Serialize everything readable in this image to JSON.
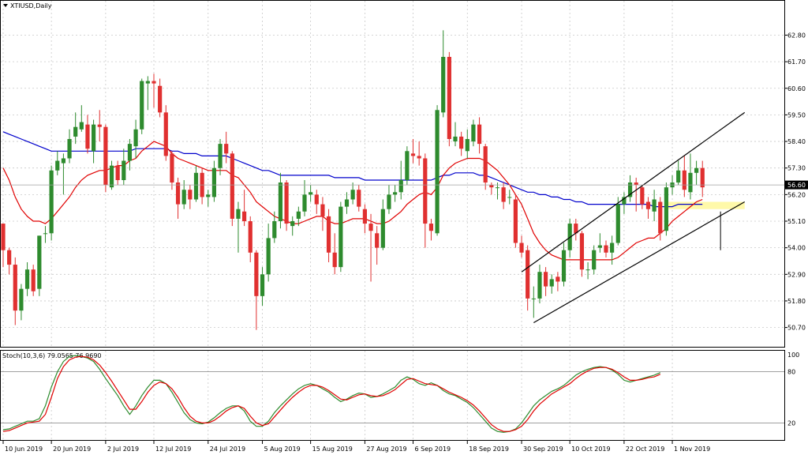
{
  "chart_data": {
    "type": "candlestick",
    "symbol_label": "XTIUSD,Daily",
    "price_axis": {
      "ylim": [
        50.0,
        63.6
      ],
      "ticks": [
        "62.80",
        "61.70",
        "60.60",
        "59.50",
        "58.40",
        "57.30",
        "56.20",
        "55.10",
        "54.00",
        "52.90",
        "51.80",
        "50.70"
      ]
    },
    "current_price_label": "56.60",
    "current_price": 56.6,
    "x_ticks": [
      {
        "bar": 0,
        "label": "10 Jun 2019"
      },
      {
        "bar": 8,
        "label": "20 Jun 2019"
      },
      {
        "bar": 17,
        "label": "2 Jul 2019"
      },
      {
        "bar": 25,
        "label": "12 Jul 2019"
      },
      {
        "bar": 34,
        "label": "24 Jul 2019"
      },
      {
        "bar": 43,
        "label": "5 Aug 2019"
      },
      {
        "bar": 51,
        "label": "15 Aug 2019"
      },
      {
        "bar": 60,
        "label": "27 Aug 2019"
      },
      {
        "bar": 68,
        "label": "6 Sep 2019"
      },
      {
        "bar": 77,
        "label": "18 Sep 2019"
      },
      {
        "bar": 86,
        "label": "30 Sep 2019"
      },
      {
        "bar": 94,
        "label": "10 Oct 2019"
      },
      {
        "bar": 103,
        "label": "22 Oct 2019"
      },
      {
        "bar": 111,
        "label": "1 Nov 2019"
      }
    ],
    "colors": {
      "bull": "#2e8b2e",
      "bear": "#e03030",
      "ma_fast": "#e00000",
      "ma_slow": "#0000cc",
      "stoch_main": "#2e8b2e",
      "stoch_signal": "#e00000",
      "highlight": "#fff8a0",
      "channel": "#000000"
    },
    "candles": [
      [
        55.0,
        53.9,
        55.0,
        53.2
      ],
      [
        53.9,
        53.3,
        54.0,
        52.9
      ],
      [
        53.3,
        51.4,
        53.6,
        50.8
      ],
      [
        51.4,
        52.3,
        52.5,
        51.0
      ],
      [
        52.3,
        53.1,
        53.4,
        52.0
      ],
      [
        53.1,
        52.2,
        53.3,
        52.0
      ],
      [
        52.3,
        54.5,
        54.5,
        52.0
      ],
      [
        54.6,
        54.6,
        54.9,
        54.2
      ],
      [
        54.6,
        57.2,
        57.4,
        54.3
      ],
      [
        57.2,
        57.6,
        58.0,
        57.0
      ],
      [
        57.5,
        57.7,
        57.9,
        56.2
      ],
      [
        57.7,
        58.5,
        58.9,
        57.5
      ],
      [
        58.6,
        59.0,
        59.6,
        58.3
      ],
      [
        58.9,
        59.2,
        59.9,
        58.8
      ],
      [
        59.1,
        58.1,
        59.5,
        57.9
      ],
      [
        58.0,
        59.1,
        59.3,
        57.5
      ],
      [
        59.1,
        59.0,
        59.7,
        58.4
      ],
      [
        59.0,
        56.6,
        59.1,
        56.3
      ],
      [
        56.5,
        57.4,
        57.6,
        56.4
      ],
      [
        57.4,
        56.8,
        57.6,
        56.6
      ],
      [
        56.8,
        57.6,
        58.1,
        56.6
      ],
      [
        57.6,
        58.3,
        58.5,
        57.2
      ],
      [
        58.2,
        58.9,
        59.3,
        57.7
      ],
      [
        58.9,
        60.9,
        61.0,
        58.7
      ],
      [
        60.8,
        60.9,
        61.1,
        59.7
      ],
      [
        60.9,
        60.8,
        61.2,
        59.8
      ],
      [
        60.7,
        59.6,
        61.0,
        59.4
      ],
      [
        59.6,
        57.8,
        59.9,
        57.6
      ],
      [
        57.9,
        56.7,
        58.0,
        56.4
      ],
      [
        56.7,
        55.8,
        56.9,
        55.2
      ],
      [
        55.8,
        56.4,
        56.8,
        55.6
      ],
      [
        56.4,
        56.0,
        56.6,
        55.6
      ],
      [
        56.0,
        57.1,
        57.4,
        55.9
      ],
      [
        57.1,
        56.1,
        57.3,
        55.8
      ],
      [
        56.1,
        56.2,
        56.4,
        55.7
      ],
      [
        56.1,
        57.3,
        57.6,
        55.9
      ],
      [
        57.3,
        58.3,
        58.5,
        57.0
      ],
      [
        58.3,
        57.9,
        58.8,
        57.5
      ],
      [
        57.9,
        55.2,
        58.0,
        54.9
      ],
      [
        55.2,
        55.6,
        55.9,
        53.8
      ],
      [
        55.5,
        55.1,
        56.4,
        54.9
      ],
      [
        55.1,
        53.8,
        55.3,
        53.4
      ],
      [
        53.8,
        52.0,
        53.9,
        50.6
      ],
      [
        52.0,
        52.9,
        53.2,
        51.6
      ],
      [
        52.9,
        54.4,
        55.0,
        52.6
      ],
      [
        54.4,
        55.1,
        55.5,
        54.2
      ],
      [
        55.1,
        56.7,
        57.1,
        54.8
      ],
      [
        56.7,
        55.0,
        56.8,
        54.7
      ],
      [
        54.9,
        55.1,
        55.3,
        54.5
      ],
      [
        55.2,
        55.5,
        55.7,
        54.9
      ],
      [
        55.5,
        56.2,
        56.8,
        55.3
      ],
      [
        56.2,
        56.3,
        56.6,
        55.9
      ],
      [
        56.2,
        55.8,
        56.4,
        55.4
      ],
      [
        55.8,
        55.3,
        56.1,
        54.7
      ],
      [
        55.3,
        53.8,
        55.6,
        53.4
      ],
      [
        53.8,
        53.2,
        54.6,
        52.9
      ],
      [
        53.2,
        55.7,
        55.9,
        53.0
      ],
      [
        55.7,
        56.0,
        56.3,
        55.4
      ],
      [
        56.0,
        56.4,
        56.7,
        55.8
      ],
      [
        56.4,
        55.7,
        56.6,
        55.5
      ],
      [
        55.6,
        55.0,
        55.8,
        54.6
      ],
      [
        55.0,
        54.7,
        55.4,
        52.6
      ],
      [
        54.6,
        54.0,
        54.9,
        53.3
      ],
      [
        54.0,
        55.6,
        56.0,
        53.9
      ],
      [
        55.6,
        56.2,
        56.6,
        55.4
      ],
      [
        56.2,
        56.3,
        56.6,
        55.9
      ],
      [
        56.3,
        56.8,
        57.6,
        56.0
      ],
      [
        56.8,
        58.0,
        58.2,
        56.6
      ],
      [
        57.9,
        57.8,
        58.5,
        57.5
      ],
      [
        57.8,
        57.7,
        58.4,
        57.4
      ],
      [
        57.7,
        55.0,
        57.9,
        54.0
      ],
      [
        55.0,
        54.7,
        55.2,
        54.3
      ],
      [
        54.6,
        59.7,
        59.9,
        54.5
      ],
      [
        59.6,
        61.9,
        63.0,
        59.4
      ],
      [
        61.9,
        58.5,
        62.1,
        58.2
      ],
      [
        58.4,
        58.6,
        59.2,
        58.2
      ],
      [
        58.6,
        58.1,
        58.8,
        57.8
      ],
      [
        58.0,
        58.5,
        58.9,
        57.7
      ],
      [
        58.4,
        59.1,
        59.3,
        58.2
      ],
      [
        59.1,
        58.3,
        59.4,
        57.9
      ],
      [
        58.2,
        56.7,
        58.3,
        56.4
      ],
      [
        56.6,
        56.5,
        56.7,
        56.2
      ],
      [
        56.5,
        56.5,
        56.7,
        56.0
      ],
      [
        56.5,
        55.9,
        56.7,
        55.6
      ],
      [
        56.1,
        56.1,
        56.4,
        55.8
      ],
      [
        56.0,
        54.2,
        56.2,
        54.0
      ],
      [
        54.2,
        53.8,
        54.5,
        53.6
      ],
      [
        53.9,
        51.9,
        54.1,
        51.4
      ],
      [
        51.9,
        51.9,
        52.4,
        51.1
      ],
      [
        51.9,
        53.0,
        53.3,
        51.7
      ],
      [
        53.0,
        52.4,
        53.2,
        52.0
      ],
      [
        52.4,
        52.7,
        52.9,
        52.1
      ],
      [
        52.8,
        52.6,
        53.0,
        52.2
      ],
      [
        52.6,
        53.9,
        54.2,
        52.4
      ],
      [
        53.9,
        55.0,
        55.2,
        53.6
      ],
      [
        55.0,
        54.6,
        55.2,
        54.3
      ],
      [
        54.6,
        53.1,
        54.7,
        52.8
      ],
      [
        53.1,
        53.1,
        53.4,
        52.7
      ],
      [
        53.1,
        53.9,
        54.1,
        52.9
      ],
      [
        54.0,
        54.1,
        54.6,
        53.8
      ],
      [
        54.1,
        53.8,
        54.3,
        53.6
      ],
      [
        53.8,
        54.2,
        54.5,
        53.3
      ],
      [
        54.2,
        55.8,
        56.1,
        54.1
      ],
      [
        55.8,
        56.1,
        56.3,
        55.4
      ],
      [
        56.1,
        56.7,
        57.0,
        55.9
      ],
      [
        56.7,
        56.6,
        56.9,
        55.5
      ],
      [
        56.5,
        55.8,
        56.6,
        55.6
      ],
      [
        55.9,
        55.6,
        56.1,
        55.2
      ],
      [
        55.5,
        56.0,
        56.4,
        55.1
      ],
      [
        55.9,
        54.6,
        56.1,
        54.3
      ],
      [
        54.7,
        56.5,
        56.7,
        54.5
      ],
      [
        56.5,
        56.7,
        57.0,
        56.2
      ],
      [
        56.7,
        57.2,
        57.6,
        56.6
      ],
      [
        57.2,
        56.4,
        57.8,
        56.1
      ],
      [
        56.3,
        57.1,
        57.9,
        56.0
      ],
      [
        57.1,
        57.3,
        57.6,
        56.6
      ],
      [
        57.3,
        56.5,
        57.6,
        56.1
      ]
    ],
    "ma_fast": [
      57.3,
      56.8,
      56.1,
      55.6,
      55.3,
      55.1,
      55.1,
      55.0,
      55.2,
      55.5,
      55.8,
      56.1,
      56.5,
      56.8,
      57.0,
      57.1,
      57.2,
      57.2,
      57.3,
      57.4,
      57.4,
      57.6,
      57.7,
      58.0,
      58.2,
      58.4,
      58.3,
      58.2,
      57.9,
      57.7,
      57.6,
      57.5,
      57.4,
      57.3,
      57.2,
      57.2,
      57.2,
      57.2,
      57.0,
      56.9,
      56.6,
      56.3,
      55.9,
      55.7,
      55.5,
      55.3,
      55.2,
      55.1,
      55.0,
      55.0,
      55.1,
      55.2,
      55.3,
      55.3,
      55.1,
      55.0,
      55.0,
      55.1,
      55.2,
      55.2,
      55.2,
      55.1,
      55.0,
      55.0,
      55.1,
      55.3,
      55.5,
      55.8,
      56.0,
      56.2,
      56.3,
      56.2,
      56.5,
      57.0,
      57.3,
      57.5,
      57.6,
      57.7,
      57.7,
      57.7,
      57.6,
      57.4,
      57.2,
      56.9,
      56.6,
      56.2,
      55.8,
      55.2,
      54.6,
      54.2,
      53.9,
      53.7,
      53.6,
      53.5,
      53.5,
      53.5,
      53.5,
      53.5,
      53.5,
      53.5,
      53.5,
      53.5,
      53.6,
      53.8,
      54.0,
      54.2,
      54.3,
      54.4,
      54.4,
      54.6,
      54.8,
      55.1,
      55.3,
      55.5,
      55.7,
      55.9,
      56.0
    ],
    "ma_slow": [
      58.8,
      58.7,
      58.6,
      58.5,
      58.4,
      58.3,
      58.2,
      58.1,
      58.0,
      58.0,
      58.0,
      58.0,
      58.0,
      58.0,
      58.0,
      58.0,
      58.0,
      58.0,
      58.0,
      58.0,
      58.0,
      58.0,
      58.1,
      58.1,
      58.1,
      58.1,
      58.1,
      58.1,
      58.0,
      58.0,
      57.9,
      57.9,
      57.9,
      57.8,
      57.8,
      57.8,
      57.8,
      57.8,
      57.7,
      57.6,
      57.5,
      57.4,
      57.3,
      57.2,
      57.2,
      57.1,
      57.0,
      57.0,
      57.0,
      57.0,
      57.0,
      57.0,
      57.0,
      57.0,
      57.0,
      56.9,
      56.9,
      56.9,
      56.9,
      56.9,
      56.8,
      56.8,
      56.8,
      56.8,
      56.8,
      56.8,
      56.8,
      56.8,
      56.8,
      56.8,
      56.8,
      56.8,
      56.9,
      57.0,
      57.0,
      57.1,
      57.1,
      57.1,
      57.1,
      57.0,
      57.0,
      56.9,
      56.8,
      56.7,
      56.6,
      56.5,
      56.4,
      56.3,
      56.3,
      56.2,
      56.2,
      56.1,
      56.1,
      56.0,
      56.0,
      55.9,
      55.9,
      55.8,
      55.8,
      55.8,
      55.8,
      55.8,
      55.8,
      55.8,
      55.8,
      55.8,
      55.8,
      55.8,
      55.7,
      55.7,
      55.7,
      55.7,
      55.8,
      55.8,
      55.8,
      55.8,
      55.8
    ],
    "stochastic": {
      "label": "Stoch(10,3,6) 79.0565 76.9690",
      "ylim": [
        0,
        100
      ],
      "ticks": [
        "100",
        "80",
        "20"
      ],
      "levels": [
        80,
        20
      ],
      "main": [
        12,
        13,
        16,
        19,
        22,
        22,
        25,
        40,
        62,
        80,
        92,
        98,
        99,
        98,
        96,
        92,
        83,
        72,
        62,
        52,
        40,
        30,
        40,
        52,
        62,
        70,
        70,
        66,
        56,
        44,
        32,
        24,
        20,
        19,
        21,
        26,
        32,
        37,
        40,
        40,
        34,
        22,
        16,
        16,
        22,
        32,
        40,
        47,
        54,
        60,
        64,
        66,
        64,
        60,
        56,
        50,
        45,
        48,
        52,
        55,
        54,
        50,
        51,
        54,
        58,
        62,
        70,
        74,
        71,
        66,
        64,
        67,
        64,
        58,
        54,
        52,
        48,
        44,
        38,
        30,
        22,
        14,
        10,
        9,
        10,
        13,
        20,
        30,
        40,
        47,
        52,
        57,
        60,
        64,
        70,
        76,
        80,
        83,
        85,
        86,
        85,
        82,
        77,
        70,
        68,
        70,
        72,
        74,
        76,
        79
      ],
      "signal": [
        10,
        11,
        14,
        17,
        20,
        21,
        22,
        30,
        50,
        72,
        86,
        94,
        97,
        98,
        97,
        94,
        88,
        79,
        69,
        58,
        47,
        36,
        36,
        45,
        56,
        64,
        68,
        66,
        60,
        50,
        38,
        28,
        22,
        20,
        20,
        23,
        28,
        34,
        38,
        40,
        37,
        28,
        20,
        17,
        19,
        27,
        35,
        43,
        50,
        56,
        61,
        64,
        64,
        62,
        58,
        53,
        48,
        47,
        50,
        53,
        54,
        52,
        51,
        52,
        55,
        59,
        65,
        71,
        72,
        69,
        66,
        65,
        64,
        60,
        56,
        53,
        50,
        46,
        41,
        34,
        26,
        18,
        13,
        10,
        10,
        12,
        16,
        24,
        34,
        42,
        48,
        54,
        58,
        62,
        66,
        72,
        77,
        81,
        84,
        85,
        85,
        83,
        79,
        74,
        70,
        70,
        71,
        73,
        74,
        77
      ]
    },
    "channel": {
      "upper": [
        [
          86,
          53.0
        ],
        [
          123,
          59.6
        ]
      ],
      "lower": [
        [
          88,
          50.9
        ],
        [
          123,
          55.9
        ]
      ],
      "highlight_zone": {
        "bar_start": 110,
        "bar_end": 123,
        "y_low": 55.6,
        "y_high": 55.9
      }
    },
    "marker_line": {
      "bar": 119,
      "y_top": 55.5,
      "y_bottom": 53.9
    }
  }
}
